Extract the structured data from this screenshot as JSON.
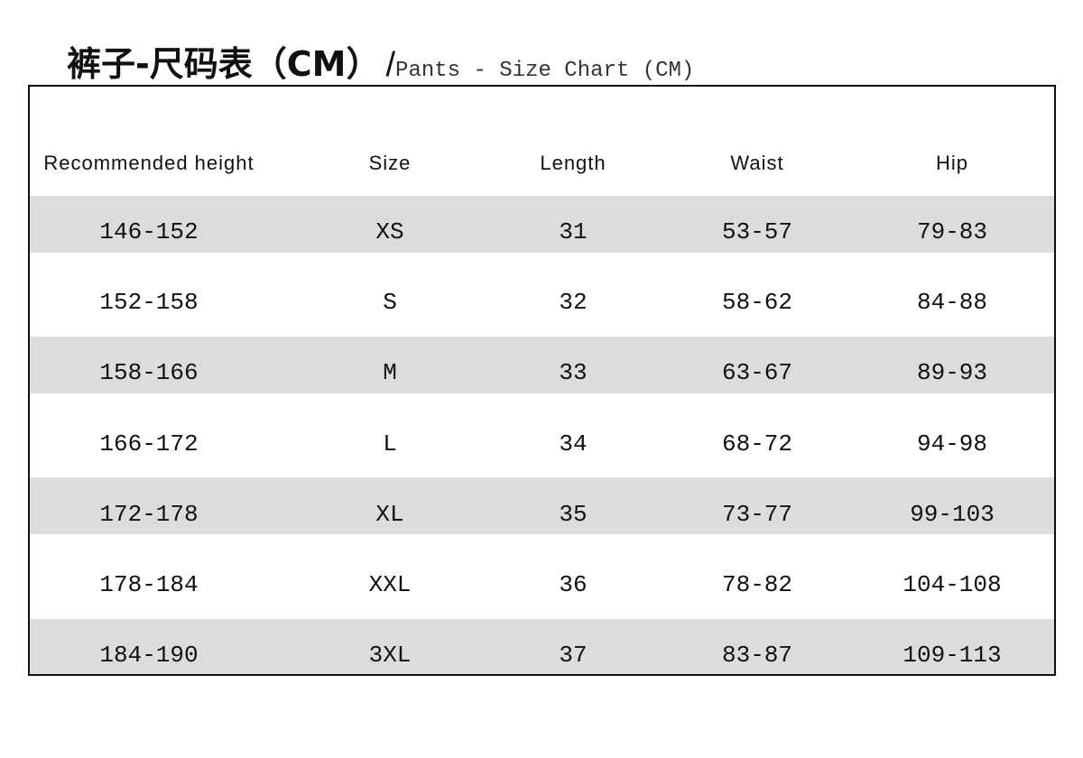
{
  "title": {
    "zh": "裤子-尺码表（CM）",
    "slash": "/",
    "en": "Pants - Size Chart (CM)"
  },
  "colors": {
    "band": "#dcdcdc",
    "border": "#111111"
  },
  "table": {
    "headers": [
      "Recommended height",
      "Size",
      "Length",
      "Waist",
      "Hip"
    ],
    "rows": [
      [
        "146-152",
        "XS",
        "31",
        "53-57",
        "79-83"
      ],
      [
        "152-158",
        "S",
        "32",
        "58-62",
        "84-88"
      ],
      [
        "158-166",
        "M",
        "33",
        "63-67",
        "89-93"
      ],
      [
        "166-172",
        "L",
        "34",
        "68-72",
        "94-98"
      ],
      [
        "172-178",
        "XL",
        "35",
        "73-77",
        "99-103"
      ],
      [
        "178-184",
        "XXL",
        "36",
        "78-82",
        "104-108"
      ],
      [
        "184-190",
        "3XL",
        "37",
        "83-87",
        "109-113"
      ]
    ]
  }
}
